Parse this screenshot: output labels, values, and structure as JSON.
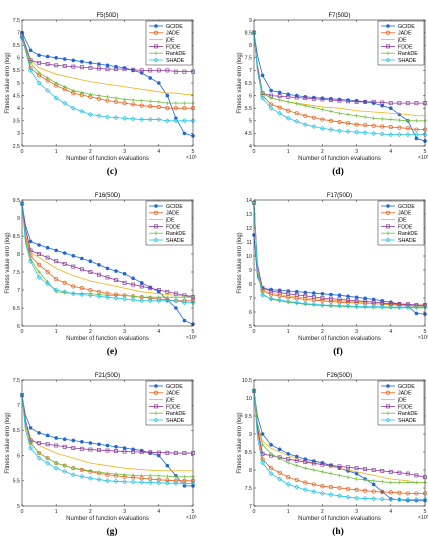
{
  "chart_data": [
    {
      "type": "line",
      "title": "F5(50D)",
      "caption": "(c)",
      "xlabel": "Number of function evaluations",
      "ylabel": "Fitness value erro (log)",
      "x_exponent": "×10⁵",
      "xlim": [
        0,
        5
      ],
      "ylim": [
        2.5,
        7.5
      ],
      "xticks": [
        0,
        1,
        2,
        3,
        4,
        5
      ],
      "yticks": [
        2.5,
        3,
        3.5,
        4,
        4.5,
        5,
        5.5,
        6,
        6.5,
        7,
        7.5
      ],
      "legend": "top-right",
      "x": [
        0,
        0.25,
        0.5,
        1,
        1.5,
        2,
        2.5,
        3,
        3.5,
        4,
        4.25,
        4.5,
        4.75,
        5
      ],
      "series": [
        {
          "name": "GCIDE",
          "values": [
            7.0,
            6.3,
            6.1,
            6.0,
            5.9,
            5.8,
            5.7,
            5.6,
            5.4,
            5.0,
            4.5,
            3.6,
            3.0,
            2.9
          ]
        },
        {
          "name": "JADE",
          "values": [
            6.8,
            5.6,
            5.3,
            4.9,
            4.6,
            4.45,
            4.3,
            4.2,
            4.1,
            4.05,
            4.0,
            4.0,
            4.0,
            4.0
          ]
        },
        {
          "name": "jDE",
          "values": [
            6.8,
            5.9,
            5.6,
            5.35,
            5.2,
            5.05,
            4.95,
            4.85,
            4.75,
            4.65,
            4.6,
            4.6,
            4.55,
            4.55
          ]
        },
        {
          "name": "FDDE",
          "values": [
            6.9,
            5.9,
            5.8,
            5.7,
            5.65,
            5.6,
            5.55,
            5.55,
            5.5,
            5.5,
            5.5,
            5.45,
            5.45,
            5.45
          ]
        },
        {
          "name": "RankDE",
          "values": [
            6.8,
            5.8,
            5.4,
            5.0,
            4.7,
            4.55,
            4.45,
            4.35,
            4.3,
            4.25,
            4.2,
            4.2,
            4.2,
            4.2
          ]
        },
        {
          "name": "SHADE",
          "values": [
            6.8,
            5.5,
            5.0,
            4.4,
            4.0,
            3.75,
            3.65,
            3.6,
            3.55,
            3.55,
            3.5,
            3.5,
            3.5,
            3.5
          ]
        }
      ]
    },
    {
      "type": "line",
      "title": "F7(50D)",
      "caption": "(d)",
      "xlabel": "Number of function evaluations",
      "ylabel": "Fitness value erro (log)",
      "x_exponent": "×10⁵",
      "xlim": [
        0,
        5
      ],
      "ylim": [
        4,
        9
      ],
      "xticks": [
        0,
        1,
        2,
        3,
        4,
        5
      ],
      "yticks": [
        4,
        4.5,
        5,
        5.5,
        6,
        6.5,
        7,
        7.5,
        8,
        8.5,
        9
      ],
      "legend": "top-right",
      "x": [
        0,
        0.1,
        0.25,
        0.5,
        1,
        1.5,
        2,
        2.5,
        3,
        3.5,
        4,
        4.5,
        4.75,
        5
      ],
      "series": [
        {
          "name": "GCIDE",
          "values": [
            8.5,
            7.6,
            6.8,
            6.2,
            6.05,
            5.95,
            5.9,
            5.85,
            5.8,
            5.7,
            5.5,
            5.0,
            4.3,
            4.2
          ]
        },
        {
          "name": "JADE",
          "values": [
            8.5,
            7.0,
            6.0,
            5.65,
            5.4,
            5.2,
            5.05,
            4.95,
            4.85,
            4.8,
            4.75,
            4.7,
            4.65,
            4.65
          ]
        },
        {
          "name": "jDE",
          "values": [
            8.5,
            7.0,
            6.1,
            5.9,
            5.75,
            5.65,
            5.55,
            5.5,
            5.4,
            5.35,
            5.3,
            5.25,
            5.2,
            5.2
          ]
        },
        {
          "name": "FDDE",
          "values": [
            8.5,
            7.2,
            6.1,
            6.0,
            5.95,
            5.9,
            5.85,
            5.8,
            5.75,
            5.75,
            5.7,
            5.7,
            5.7,
            5.7
          ]
        },
        {
          "name": "RankDE",
          "values": [
            8.5,
            7.0,
            6.1,
            5.9,
            5.75,
            5.6,
            5.45,
            5.3,
            5.2,
            5.1,
            5.05,
            5.0,
            5.0,
            5.0
          ]
        },
        {
          "name": "SHADE",
          "values": [
            8.5,
            7.0,
            5.9,
            5.5,
            5.1,
            4.85,
            4.7,
            4.6,
            4.55,
            4.5,
            4.45,
            4.45,
            4.45,
            4.45
          ]
        }
      ]
    },
    {
      "type": "line",
      "title": "F16(50D)",
      "caption": "(e)",
      "xlabel": "Number of function evaluations",
      "ylabel": "Fitness value erro (log)",
      "x_exponent": "×10⁵",
      "xlim": [
        0,
        5
      ],
      "ylim": [
        6,
        9.5
      ],
      "xticks": [
        0,
        1,
        2,
        3,
        4,
        5
      ],
      "yticks": [
        6,
        6.5,
        7,
        7.5,
        8,
        8.5,
        9,
        9.5
      ],
      "legend": "top-right",
      "x": [
        0,
        0.1,
        0.25,
        0.5,
        1,
        1.5,
        2,
        2.5,
        3,
        3.5,
        4,
        4.5,
        4.75,
        5
      ],
      "series": [
        {
          "name": "GCIDE",
          "values": [
            9.4,
            8.8,
            8.35,
            8.25,
            8.1,
            7.95,
            7.8,
            7.6,
            7.45,
            7.2,
            6.95,
            6.5,
            6.15,
            6.05
          ]
        },
        {
          "name": "JADE",
          "values": [
            9.4,
            8.5,
            7.95,
            7.7,
            7.3,
            7.1,
            7.0,
            6.9,
            6.85,
            6.8,
            6.75,
            6.7,
            6.7,
            6.7
          ]
        },
        {
          "name": "jDE",
          "values": [
            9.4,
            8.6,
            8.05,
            7.9,
            7.6,
            7.4,
            7.25,
            7.15,
            7.05,
            6.95,
            6.9,
            6.85,
            6.85,
            6.85
          ]
        },
        {
          "name": "FDDE",
          "values": [
            9.4,
            8.7,
            8.1,
            8.0,
            7.8,
            7.65,
            7.5,
            7.35,
            7.2,
            7.1,
            7.0,
            6.9,
            6.85,
            6.8
          ]
        },
        {
          "name": "RankDE",
          "values": [
            9.4,
            8.4,
            7.85,
            7.5,
            6.95,
            6.9,
            6.9,
            6.85,
            6.85,
            6.8,
            6.8,
            6.8,
            6.8,
            6.8
          ]
        },
        {
          "name": "SHADE",
          "values": [
            9.4,
            8.3,
            7.8,
            7.35,
            7.0,
            6.9,
            6.85,
            6.8,
            6.75,
            6.7,
            6.7,
            6.7,
            6.65,
            6.65
          ]
        }
      ]
    },
    {
      "type": "line",
      "title": "F17(50D)",
      "caption": "(f)",
      "xlabel": "Number of function evaluations",
      "ylabel": "Fitness value erro (log)",
      "x_exponent": "×10⁵",
      "xlim": [
        0,
        5
      ],
      "ylim": [
        5,
        14
      ],
      "xticks": [
        0,
        1,
        2,
        3,
        4,
        5
      ],
      "yticks": [
        5,
        6,
        7,
        8,
        9,
        10,
        11,
        12,
        13,
        14
      ],
      "legend": "top-right",
      "x": [
        0,
        0.1,
        0.25,
        0.5,
        1,
        1.5,
        2,
        2.5,
        3,
        3.5,
        4,
        4.5,
        4.75,
        5
      ],
      "series": [
        {
          "name": "GCIDE",
          "values": [
            11.5,
            8.5,
            7.7,
            7.6,
            7.5,
            7.4,
            7.3,
            7.2,
            7.05,
            6.9,
            6.7,
            6.4,
            5.9,
            5.85
          ]
        },
        {
          "name": "JADE",
          "values": [
            13.8,
            9.0,
            7.5,
            7.25,
            7.05,
            6.9,
            6.8,
            6.7,
            6.65,
            6.6,
            6.55,
            6.5,
            6.45,
            6.45
          ]
        },
        {
          "name": "jDE",
          "values": [
            13.8,
            9.2,
            7.6,
            7.35,
            7.15,
            7.0,
            6.9,
            6.8,
            6.7,
            6.6,
            6.5,
            6.45,
            6.4,
            6.4
          ]
        },
        {
          "name": "FDDE",
          "values": [
            13.8,
            9.4,
            7.7,
            7.5,
            7.3,
            7.15,
            7.0,
            6.9,
            6.8,
            6.7,
            6.6,
            6.55,
            6.5,
            6.5
          ]
        },
        {
          "name": "RankDE",
          "values": [
            13.8,
            9.0,
            7.3,
            6.9,
            6.7,
            6.55,
            6.45,
            6.4,
            6.35,
            6.3,
            6.3,
            6.3,
            6.3,
            6.3
          ]
        },
        {
          "name": "SHADE",
          "values": [
            13.8,
            8.8,
            7.2,
            6.95,
            6.75,
            6.6,
            6.5,
            6.45,
            6.4,
            6.4,
            6.35,
            6.35,
            6.35,
            6.35
          ]
        }
      ]
    },
    {
      "type": "line",
      "title": "F21(50D)",
      "caption": "(g)",
      "xlabel": "Number of function evaluations",
      "ylabel": "Fitness value erro (log)",
      "x_exponent": "×10⁵",
      "xlim": [
        0,
        5
      ],
      "ylim": [
        5,
        7.5
      ],
      "xticks": [
        0,
        1,
        2,
        3,
        4,
        5
      ],
      "yticks": [
        5,
        5.5,
        6,
        6.5,
        7,
        7.5
      ],
      "legend": "top-right",
      "x": [
        0,
        0.1,
        0.25,
        0.5,
        1,
        1.5,
        2,
        2.5,
        3,
        3.5,
        4,
        4.5,
        4.75,
        5
      ],
      "series": [
        {
          "name": "GCIDE",
          "values": [
            7.2,
            6.8,
            6.55,
            6.45,
            6.35,
            6.3,
            6.25,
            6.2,
            6.15,
            6.1,
            6.0,
            5.6,
            5.4,
            5.4
          ]
        },
        {
          "name": "JADE",
          "values": [
            7.2,
            6.6,
            6.25,
            6.05,
            5.85,
            5.75,
            5.68,
            5.62,
            5.58,
            5.55,
            5.52,
            5.5,
            5.5,
            5.5
          ]
        },
        {
          "name": "jDE",
          "values": [
            7.2,
            6.7,
            6.35,
            6.2,
            6.05,
            5.95,
            5.85,
            5.8,
            5.75,
            5.72,
            5.7,
            5.7,
            5.7,
            5.7
          ]
        },
        {
          "name": "FDDE",
          "values": [
            7.2,
            6.7,
            6.3,
            6.25,
            6.2,
            6.15,
            6.12,
            6.1,
            6.08,
            6.07,
            6.06,
            6.05,
            6.05,
            6.05
          ]
        },
        {
          "name": "RankDE",
          "values": [
            7.2,
            6.6,
            6.25,
            6.05,
            5.85,
            5.75,
            5.7,
            5.65,
            5.62,
            5.6,
            5.6,
            5.58,
            5.58,
            5.58
          ]
        },
        {
          "name": "SHADE",
          "values": [
            7.2,
            6.5,
            6.15,
            5.95,
            5.75,
            5.62,
            5.55,
            5.5,
            5.48,
            5.47,
            5.46,
            5.45,
            5.45,
            5.45
          ]
        }
      ]
    },
    {
      "type": "line",
      "title": "F26(50D)",
      "caption": "(h)",
      "xlabel": "Number of function evaluations",
      "ylabel": "Fitness value erro (log)",
      "x_exponent": "×10⁵",
      "xlim": [
        0,
        5
      ],
      "ylim": [
        7,
        10.5
      ],
      "xticks": [
        0,
        1,
        2,
        3,
        4,
        5
      ],
      "yticks": [
        7,
        7.5,
        8,
        8.5,
        9,
        9.5,
        10,
        10.5
      ],
      "legend": "top-right",
      "x": [
        0,
        0.1,
        0.25,
        0.5,
        1,
        1.5,
        2,
        2.5,
        3,
        3.5,
        4,
        4.5,
        4.75,
        5
      ],
      "series": [
        {
          "name": "GCIDE",
          "values": [
            10.2,
            9.5,
            9.0,
            8.7,
            8.45,
            8.3,
            8.2,
            8.05,
            7.9,
            7.6,
            7.2,
            7.15,
            7.15,
            7.15
          ]
        },
        {
          "name": "JADE",
          "values": [
            10.2,
            9.1,
            8.3,
            8.05,
            7.8,
            7.65,
            7.55,
            7.5,
            7.45,
            7.4,
            7.38,
            7.35,
            7.35,
            7.35
          ]
        },
        {
          "name": "jDE",
          "values": [
            10.2,
            9.3,
            8.8,
            8.6,
            8.4,
            8.25,
            8.15,
            8.05,
            7.95,
            7.85,
            7.75,
            7.7,
            7.65,
            7.65
          ]
        },
        {
          "name": "FDDE",
          "values": [
            10.2,
            9.2,
            8.45,
            8.4,
            8.3,
            8.22,
            8.15,
            8.1,
            8.05,
            8.0,
            7.95,
            7.9,
            7.85,
            7.8
          ]
        },
        {
          "name": "RankDE",
          "values": [
            10.2,
            9.3,
            8.7,
            8.45,
            8.2,
            8.05,
            7.95,
            7.85,
            7.75,
            7.7,
            7.65,
            7.65,
            7.65,
            7.65
          ]
        },
        {
          "name": "SHADE",
          "values": [
            10.2,
            8.9,
            8.2,
            7.9,
            7.6,
            7.45,
            7.35,
            7.28,
            7.22,
            7.2,
            7.18,
            7.18,
            7.18,
            7.18
          ]
        }
      ]
    }
  ],
  "series_style": [
    {
      "name": "GCIDE",
      "color": "#2166d6",
      "marker": "circle-filled"
    },
    {
      "name": "JADE",
      "color": "#e8601c",
      "marker": "circle-open"
    },
    {
      "name": "jDE",
      "color": "#f2b21b",
      "marker": "none"
    },
    {
      "name": "FDDE",
      "color": "#8a3c9c",
      "marker": "square-open"
    },
    {
      "name": "RankDE",
      "color": "#6cbf3b",
      "marker": "plus"
    },
    {
      "name": "SHADE",
      "color": "#28c3e8",
      "marker": "diamond-open"
    }
  ]
}
